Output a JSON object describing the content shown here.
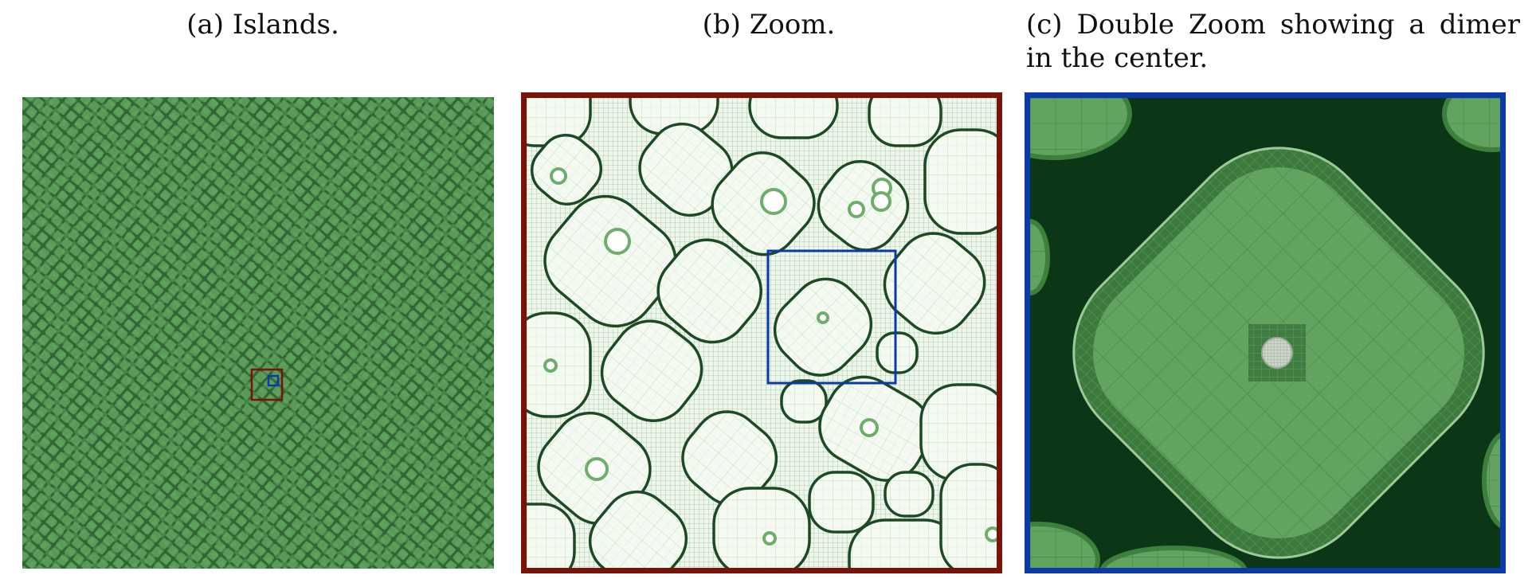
{
  "figure": {
    "captions": {
      "a": "(a) Islands.",
      "b": "(b) Zoom.",
      "c": "(c) Double Zoom showing a dimer in the center."
    },
    "colors": {
      "island_green": "#5a9a58",
      "dark_green": "#0c3716",
      "mesh_light": "#cfe7c8",
      "zoom_box_red": "#7b1208",
      "zoom_box_blue": "#0b3aa8"
    }
  }
}
